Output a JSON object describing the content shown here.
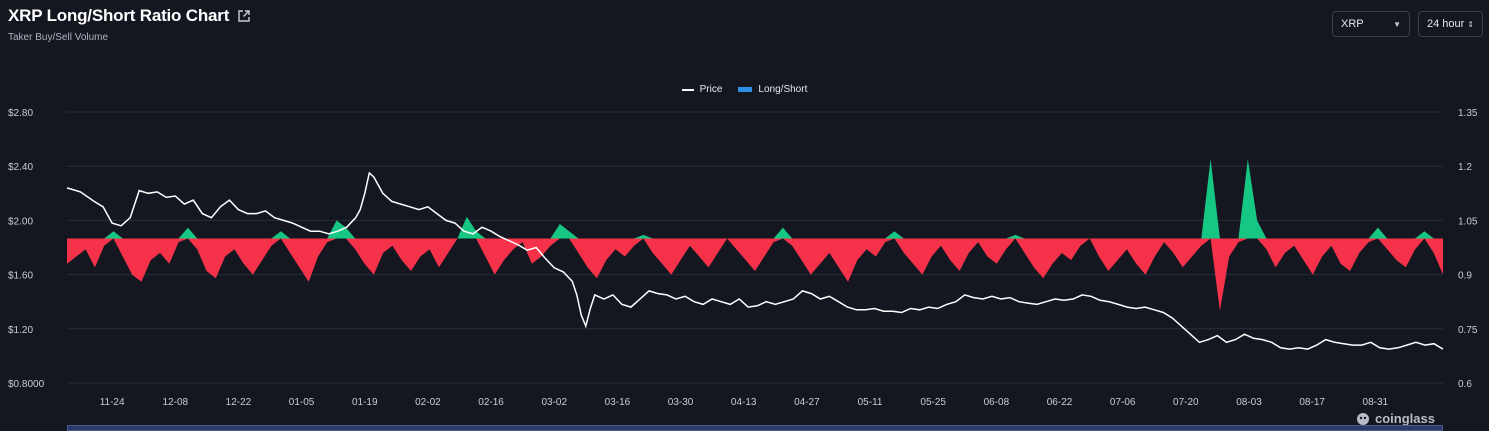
{
  "header": {
    "title": "XRP Long/Short Ratio Chart",
    "subtitle": "Taker Buy/Sell Volume"
  },
  "controls": {
    "symbol": "XRP",
    "interval": "24 hour"
  },
  "legend": {
    "price_label": "Price",
    "ratio_label": "Long/Short"
  },
  "watermark": "coinglass",
  "colors": {
    "background": "#141720",
    "price_line": "#ffffff",
    "long": "#16c784",
    "short": "#f6324b",
    "legend_ratio": "#2f8fe6",
    "grid": "#2a2e39"
  },
  "chart_data": {
    "type": "line+area",
    "x_tick_labels": [
      "11-24",
      "12-08",
      "12-22",
      "01-05",
      "01-19",
      "02-02",
      "02-16",
      "03-02",
      "03-16",
      "03-30",
      "04-13",
      "04-27",
      "05-11",
      "05-25",
      "06-08",
      "06-22",
      "07-06",
      "07-20",
      "08-03",
      "08-17",
      "08-31"
    ],
    "y_left_ticks": [
      "$0.8000",
      "$1.20",
      "$1.60",
      "$2.00",
      "$2.40",
      "$2.80"
    ],
    "y_left_range": [
      0.8,
      2.8
    ],
    "y_right_ticks": [
      "0.6",
      "0.75",
      "0.9",
      "1.05",
      "1.2",
      "1.35"
    ],
    "y_right_range": [
      0.6,
      1.35
    ],
    "baseline_ratio": 1.0,
    "x_range_days": [
      -10,
      295
    ],
    "series": [
      {
        "name": "Price",
        "axis": "left",
        "points": [
          [
            -10,
            2.24
          ],
          [
            -7,
            2.21
          ],
          [
            -4,
            2.14
          ],
          [
            -2,
            2.1
          ],
          [
            0,
            1.98
          ],
          [
            2,
            1.96
          ],
          [
            4,
            2.02
          ],
          [
            6,
            2.22
          ],
          [
            8,
            2.2
          ],
          [
            10,
            2.21
          ],
          [
            12,
            2.17
          ],
          [
            14,
            2.18
          ],
          [
            16,
            2.12
          ],
          [
            18,
            2.15
          ],
          [
            20,
            2.05
          ],
          [
            22,
            2.02
          ],
          [
            24,
            2.1
          ],
          [
            26,
            2.15
          ],
          [
            28,
            2.08
          ],
          [
            30,
            2.05
          ],
          [
            32,
            2.05
          ],
          [
            34,
            2.07
          ],
          [
            36,
            2.02
          ],
          [
            38,
            2.0
          ],
          [
            40,
            1.98
          ],
          [
            42,
            1.95
          ],
          [
            44,
            1.92
          ],
          [
            46,
            1.92
          ],
          [
            48,
            1.9
          ],
          [
            50,
            1.92
          ],
          [
            52,
            1.95
          ],
          [
            54,
            2.02
          ],
          [
            55,
            2.08
          ],
          [
            56,
            2.2
          ],
          [
            57,
            2.35
          ],
          [
            58,
            2.32
          ],
          [
            60,
            2.2
          ],
          [
            62,
            2.14
          ],
          [
            64,
            2.12
          ],
          [
            66,
            2.1
          ],
          [
            68,
            2.08
          ],
          [
            70,
            2.1
          ],
          [
            72,
            2.05
          ],
          [
            74,
            2.0
          ],
          [
            76,
            1.98
          ],
          [
            78,
            1.92
          ],
          [
            80,
            1.9
          ],
          [
            82,
            1.95
          ],
          [
            84,
            1.92
          ],
          [
            86,
            1.88
          ],
          [
            88,
            1.85
          ],
          [
            90,
            1.82
          ],
          [
            92,
            1.78
          ],
          [
            94,
            1.8
          ],
          [
            96,
            1.72
          ],
          [
            98,
            1.65
          ],
          [
            100,
            1.62
          ],
          [
            102,
            1.55
          ],
          [
            103,
            1.45
          ],
          [
            104,
            1.3
          ],
          [
            105,
            1.22
          ],
          [
            106,
            1.35
          ],
          [
            107,
            1.45
          ],
          [
            109,
            1.42
          ],
          [
            111,
            1.45
          ],
          [
            113,
            1.38
          ],
          [
            115,
            1.36
          ],
          [
            117,
            1.42
          ],
          [
            119,
            1.48
          ],
          [
            121,
            1.46
          ],
          [
            123,
            1.45
          ],
          [
            125,
            1.42
          ],
          [
            127,
            1.44
          ],
          [
            129,
            1.4
          ],
          [
            131,
            1.38
          ],
          [
            133,
            1.42
          ],
          [
            135,
            1.4
          ],
          [
            137,
            1.38
          ],
          [
            139,
            1.42
          ],
          [
            141,
            1.36
          ],
          [
            143,
            1.37
          ],
          [
            145,
            1.4
          ],
          [
            147,
            1.38
          ],
          [
            149,
            1.4
          ],
          [
            151,
            1.42
          ],
          [
            153,
            1.48
          ],
          [
            155,
            1.46
          ],
          [
            157,
            1.42
          ],
          [
            159,
            1.44
          ],
          [
            161,
            1.4
          ],
          [
            163,
            1.36
          ],
          [
            165,
            1.34
          ],
          [
            167,
            1.34
          ],
          [
            169,
            1.35
          ],
          [
            171,
            1.33
          ],
          [
            173,
            1.33
          ],
          [
            175,
            1.32
          ],
          [
            177,
            1.35
          ],
          [
            179,
            1.34
          ],
          [
            181,
            1.36
          ],
          [
            183,
            1.35
          ],
          [
            185,
            1.38
          ],
          [
            187,
            1.4
          ],
          [
            189,
            1.45
          ],
          [
            191,
            1.43
          ],
          [
            193,
            1.42
          ],
          [
            195,
            1.44
          ],
          [
            197,
            1.42
          ],
          [
            199,
            1.43
          ],
          [
            201,
            1.4
          ],
          [
            203,
            1.39
          ],
          [
            205,
            1.38
          ],
          [
            207,
            1.4
          ],
          [
            209,
            1.42
          ],
          [
            211,
            1.41
          ],
          [
            213,
            1.42
          ],
          [
            215,
            1.45
          ],
          [
            217,
            1.44
          ],
          [
            219,
            1.41
          ],
          [
            221,
            1.4
          ],
          [
            223,
            1.38
          ],
          [
            225,
            1.36
          ],
          [
            227,
            1.35
          ],
          [
            229,
            1.36
          ],
          [
            231,
            1.34
          ],
          [
            233,
            1.32
          ],
          [
            235,
            1.28
          ],
          [
            237,
            1.22
          ],
          [
            239,
            1.16
          ],
          [
            241,
            1.1
          ],
          [
            243,
            1.12
          ],
          [
            245,
            1.15
          ],
          [
            247,
            1.1
          ],
          [
            249,
            1.12
          ],
          [
            251,
            1.16
          ],
          [
            253,
            1.13
          ],
          [
            255,
            1.12
          ],
          [
            257,
            1.1
          ],
          [
            259,
            1.06
          ],
          [
            261,
            1.05
          ],
          [
            263,
            1.06
          ],
          [
            265,
            1.05
          ],
          [
            267,
            1.08
          ],
          [
            269,
            1.12
          ],
          [
            271,
            1.1
          ],
          [
            273,
            1.09
          ],
          [
            275,
            1.08
          ],
          [
            277,
            1.08
          ],
          [
            279,
            1.1
          ],
          [
            281,
            1.06
          ],
          [
            283,
            1.05
          ],
          [
            285,
            1.06
          ],
          [
            287,
            1.08
          ],
          [
            289,
            1.1
          ],
          [
            291,
            1.08
          ],
          [
            293,
            1.09
          ],
          [
            295,
            1.05
          ]
        ]
      },
      {
        "name": "Long/Short",
        "axis": "right",
        "values": [
          0.93,
          0.95,
          0.97,
          0.92,
          0.98,
          1.02,
          0.95,
          0.9,
          0.88,
          0.94,
          0.96,
          0.93,
          0.99,
          1.03,
          0.97,
          0.91,
          0.89,
          0.95,
          0.97,
          0.93,
          0.9,
          0.94,
          0.98,
          1.02,
          0.96,
          0.92,
          0.88,
          0.95,
          0.99,
          1.05,
          1.03,
          0.97,
          0.93,
          0.9,
          0.96,
          0.98,
          0.94,
          0.91,
          0.95,
          0.97,
          0.92,
          0.96,
          1.0,
          1.06,
          1.02,
          0.95,
          0.9,
          0.94,
          0.97,
          0.99,
          0.93,
          0.95,
          0.98,
          1.04,
          1.02,
          0.96,
          0.92,
          0.89,
          0.94,
          0.97,
          0.95,
          0.98,
          1.01,
          0.96,
          0.93,
          0.9,
          0.94,
          0.98,
          0.95,
          0.92,
          0.96,
          1.0,
          0.97,
          0.94,
          0.91,
          0.95,
          0.99,
          1.03,
          0.98,
          0.94,
          0.9,
          0.93,
          0.96,
          0.92,
          0.88,
          0.94,
          0.97,
          0.95,
          0.99,
          1.02,
          0.96,
          0.93,
          0.9,
          0.95,
          0.98,
          0.94,
          0.91,
          0.96,
          0.99,
          0.95,
          0.93,
          0.97,
          1.01,
          0.96,
          0.92,
          0.89,
          0.93,
          0.96,
          0.94,
          0.98,
          1.0,
          0.95,
          0.91,
          0.94,
          0.97,
          0.93,
          0.9,
          0.95,
          0.99,
          0.96,
          0.92,
          0.95,
          0.98,
          1.22,
          0.8,
          0.95,
          0.99,
          1.22,
          1.05,
          0.97,
          0.92,
          0.96,
          0.98,
          0.94,
          0.9,
          0.95,
          0.98,
          0.93,
          0.91,
          0.96,
          0.99,
          1.03,
          0.97,
          0.94,
          0.92,
          0.97,
          1.02,
          0.96,
          0.9
        ]
      }
    ]
  }
}
